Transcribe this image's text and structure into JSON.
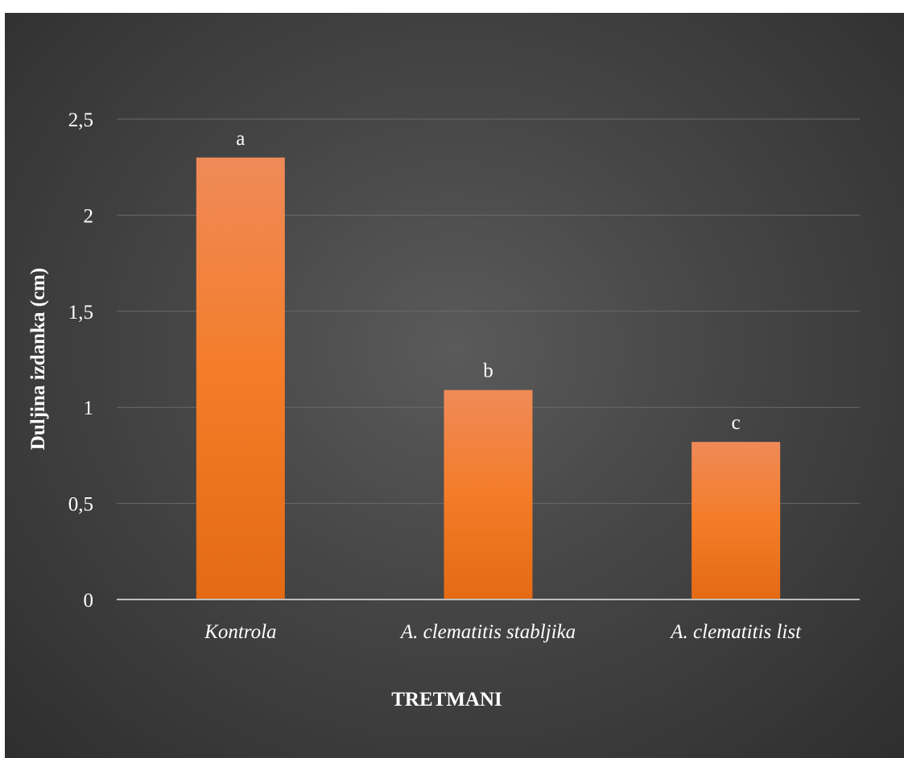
{
  "chart_data": {
    "type": "bar",
    "categories": [
      "Kontrola",
      "A. clematitis stabljika",
      "A. clematitis list"
    ],
    "values": [
      2.3,
      1.09,
      0.82
    ],
    "data_labels": [
      "a",
      "b",
      "c"
    ],
    "xlabel": "TRETMANI",
    "ylabel": "Duljina izdanka (cm)",
    "ylim": [
      0,
      2.5
    ],
    "yticks": [
      0,
      0.5,
      1,
      1.5,
      2,
      2.5
    ],
    "ytick_labels": [
      "0",
      "0,5",
      "1",
      "1,5",
      "2",
      "2,5"
    ],
    "grid": true,
    "legend": "none",
    "colors": {
      "bar_top": "#ef8a58",
      "bar_mid": "#f47c28",
      "bar_bottom": "#e46a14",
      "gridline": "#6a6a6a",
      "axis": "#bdbdbd",
      "text": "#ffffff"
    }
  }
}
